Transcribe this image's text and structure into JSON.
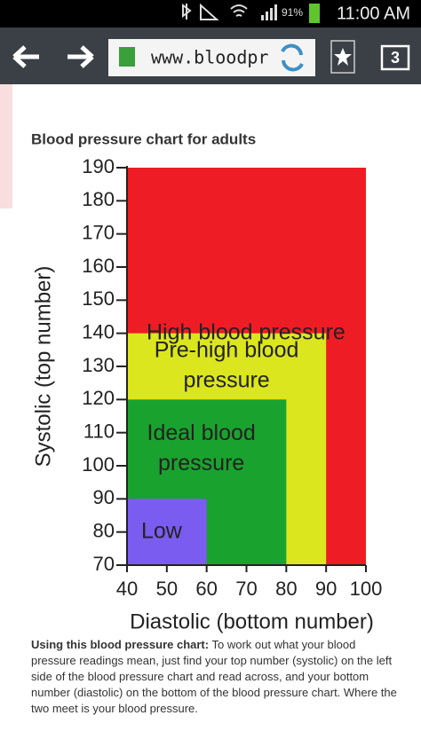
{
  "status_bar": {
    "battery": "91%",
    "time": "11:00 AM"
  },
  "browser": {
    "url": "www.bloodpr",
    "tab_count": "3"
  },
  "article": {
    "heading": "Blood pressure chart for adults",
    "caption_bold": "Using this blood pressure chart:",
    "caption": "To work out what your blood pressure readings mean, just find your top number (systolic) on the left side of the blood pressure chart and read across, and your bottom number (diastolic) on the bottom of the blood pressure chart. Where the two meet is your blood pressure."
  },
  "chart_data": {
    "type": "region",
    "xlabel": "Diastolic (bottom number)",
    "ylabel": "Systolic (top number)",
    "xlim": [
      40,
      100
    ],
    "ylim": [
      70,
      190
    ],
    "xticks": [
      40,
      50,
      60,
      70,
      80,
      90,
      100
    ],
    "yticks": [
      70,
      80,
      90,
      100,
      110,
      120,
      130,
      140,
      150,
      160,
      170,
      180,
      190
    ],
    "regions": [
      {
        "label_lines": [
          "High blood pressure"
        ],
        "color": "#ee1c25",
        "x": [
          40,
          100
        ],
        "y": [
          70,
          190
        ]
      },
      {
        "label_lines": [
          "Pre-high blood",
          "pressure"
        ],
        "color": "#dbe61e",
        "x": [
          40,
          90
        ],
        "y": [
          70,
          140
        ]
      },
      {
        "label_lines": [
          "Ideal blood",
          "pressure"
        ],
        "color": "#1aa22e",
        "x": [
          40,
          80
        ],
        "y": [
          70,
          120
        ]
      },
      {
        "label_lines": [
          "Low"
        ],
        "color": "#7b5cf0",
        "x": [
          40,
          60
        ],
        "y": [
          70,
          90
        ]
      }
    ]
  }
}
